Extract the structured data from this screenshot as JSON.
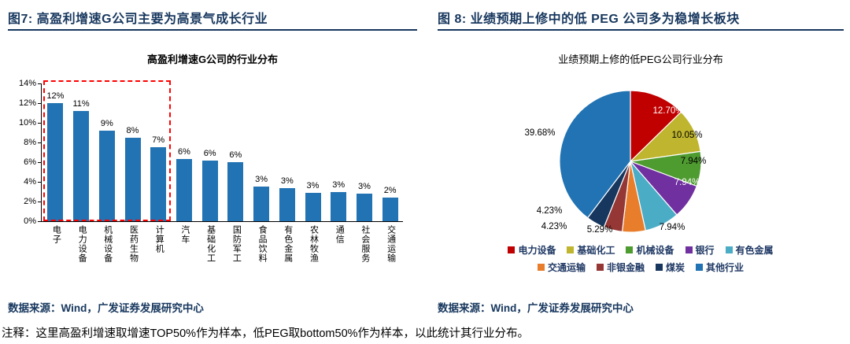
{
  "panels": {
    "left": {
      "header": "图7:  高盈利增速G公司主要为高景气成长行业",
      "source": "数据来源：Wind，广发证券发展研究中心"
    },
    "right": {
      "header": "图 8:  业绩预期上修中的低 PEG 公司多为稳增长板块",
      "source": "数据来源：Wind，广发证券发展研究中心"
    }
  },
  "note": {
    "text": "注释：这里高盈利增速取增速TOP50%作为样本，低PEG取bottom50%作为样本，以此统计其行业分布。"
  },
  "colors": {
    "accent_navy": "#17375E",
    "bar_blue": "#2173B3",
    "highlight_red": "#FF0000"
  },
  "chart_data": [
    {
      "type": "bar",
      "title": "高盈利增速G公司的行业分布",
      "categories": [
        "电子",
        "电力设备",
        "机械设备",
        "医药生物",
        "计算机",
        "汽车",
        "基础化工",
        "国防军工",
        "食品饮料",
        "有色金属",
        "农林牧渔",
        "通信",
        "社会服务",
        "交通运输"
      ],
      "values": [
        12.0,
        11.2,
        9.2,
        8.5,
        7.5,
        6.3,
        6.2,
        6.0,
        3.5,
        3.4,
        2.9,
        3.0,
        2.8,
        2.4
      ],
      "data_labels": [
        "12%",
        "11%",
        "9%",
        "8%",
        "7%",
        "6%",
        "6%",
        "6%",
        "3%",
        "3%",
        "3%",
        "3%",
        "3%",
        "2%"
      ],
      "ylim": [
        0,
        14
      ],
      "ytick_labels": [
        "0%",
        "2%",
        "4%",
        "6%",
        "8%",
        "10%",
        "12%",
        "14%"
      ],
      "grid": false,
      "legend": "none",
      "bar_color": "#2173B3",
      "highlight_box": {
        "categories": [
          "电子",
          "计算机"
        ],
        "style": "red-dashed"
      }
    },
    {
      "type": "pie",
      "title": "业绩预期上修的低PEG公司行业分布",
      "slices": [
        {
          "label": "电力设备",
          "value": 12.7,
          "display": "12.70%",
          "color": "#C00000"
        },
        {
          "label": "基础化工",
          "value": 10.05,
          "display": "10.05%",
          "color": "#BFB52E"
        },
        {
          "label": "机械设备",
          "value": 7.94,
          "display": "7.94%",
          "color": "#4E9B30"
        },
        {
          "label": "银行",
          "value": 7.94,
          "display": "7.94%",
          "color": "#7030A0"
        },
        {
          "label": "有色金属",
          "value": 7.94,
          "display": "7.94%",
          "color": "#4BACC6"
        },
        {
          "label": "交通运输",
          "value": 5.29,
          "display": "5.29%",
          "color": "#E87E2B"
        },
        {
          "label": "非银金融",
          "value": 4.23,
          "display": "4.23%",
          "color": "#943735"
        },
        {
          "label": "煤炭",
          "value": 4.23,
          "display": "4.23%",
          "color": "#17375E"
        },
        {
          "label": "其他行业",
          "value": 39.68,
          "display": "39.68%",
          "color": "#2173B3"
        }
      ],
      "legend_rows": [
        [
          "电力设备",
          "基础化工",
          "机械设备",
          "银行",
          "有色金属"
        ],
        [
          "交通运输",
          "非银金融",
          "煤炭",
          "其他行业"
        ]
      ],
      "legend_position": "bottom"
    }
  ]
}
